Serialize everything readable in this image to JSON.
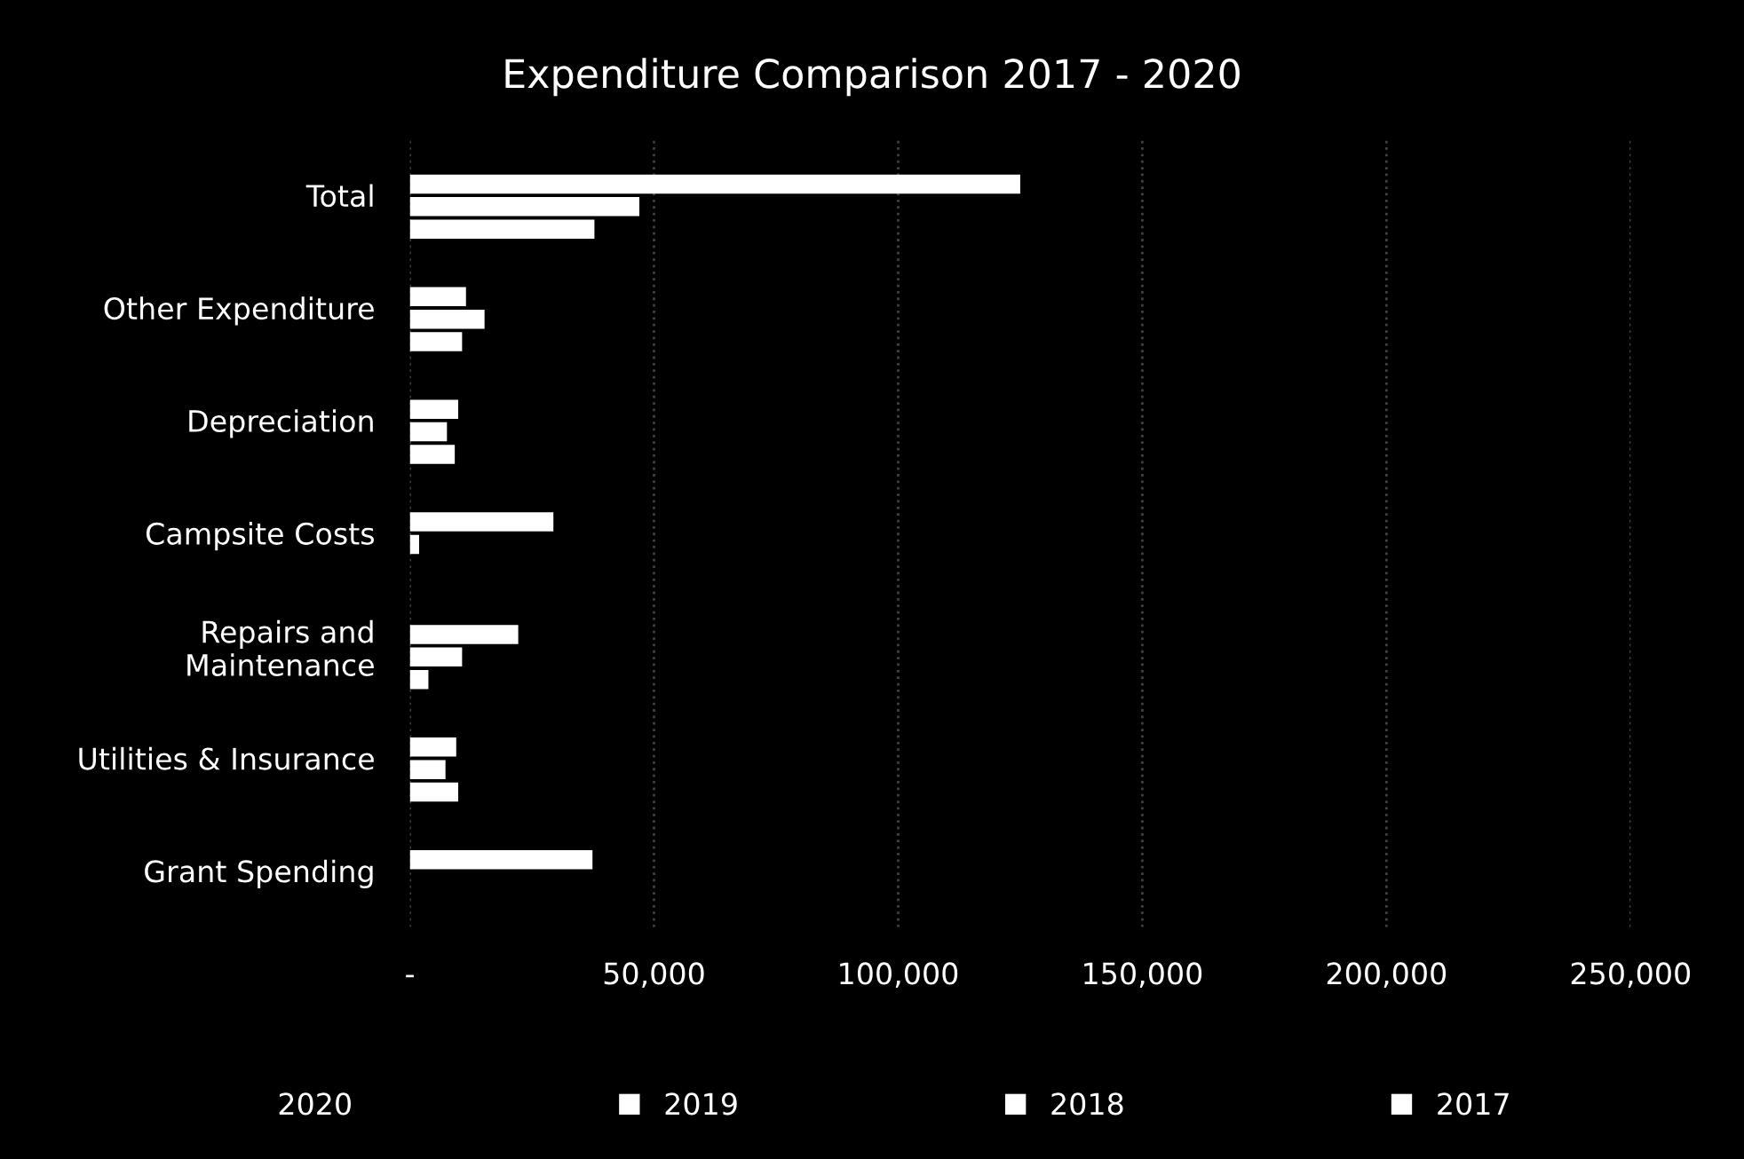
{
  "chart_data": {
    "type": "bar",
    "orientation": "horizontal",
    "title": "Expenditure Comparison 2017 - 2020",
    "categories": [
      "Total",
      "Other Expenditure",
      "Depreciation",
      "Campsite Costs",
      "Repairs and\nMaintenance",
      "Utilities & Insurance",
      "Grant Spending"
    ],
    "series": [
      {
        "name": "2020",
        "values": [
          null,
          null,
          null,
          null,
          null,
          null,
          null
        ]
      },
      {
        "name": "2019",
        "color": "#ffffff",
        "values": [
          125000,
          11500,
          9900,
          29400,
          22200,
          9500,
          37400
        ]
      },
      {
        "name": "2018",
        "color": "#ffffff",
        "values": [
          47000,
          15300,
          7600,
          1900,
          10700,
          7300,
          null
        ]
      },
      {
        "name": "2017",
        "color": "#ffffff",
        "values": [
          37800,
          10700,
          9200,
          null,
          3800,
          9900,
          null
        ]
      }
    ],
    "xlim": [
      0,
      250000
    ],
    "xticks": [
      {
        "value": 0,
        "label": "-"
      },
      {
        "value": 50000,
        "label": "50,000"
      },
      {
        "value": 100000,
        "label": "100,000"
      },
      {
        "value": 150000,
        "label": "150,000"
      },
      {
        "value": 200000,
        "label": "200,000"
      },
      {
        "value": 250000,
        "label": "250,000"
      }
    ],
    "grid": "x",
    "legend": "bottom"
  }
}
